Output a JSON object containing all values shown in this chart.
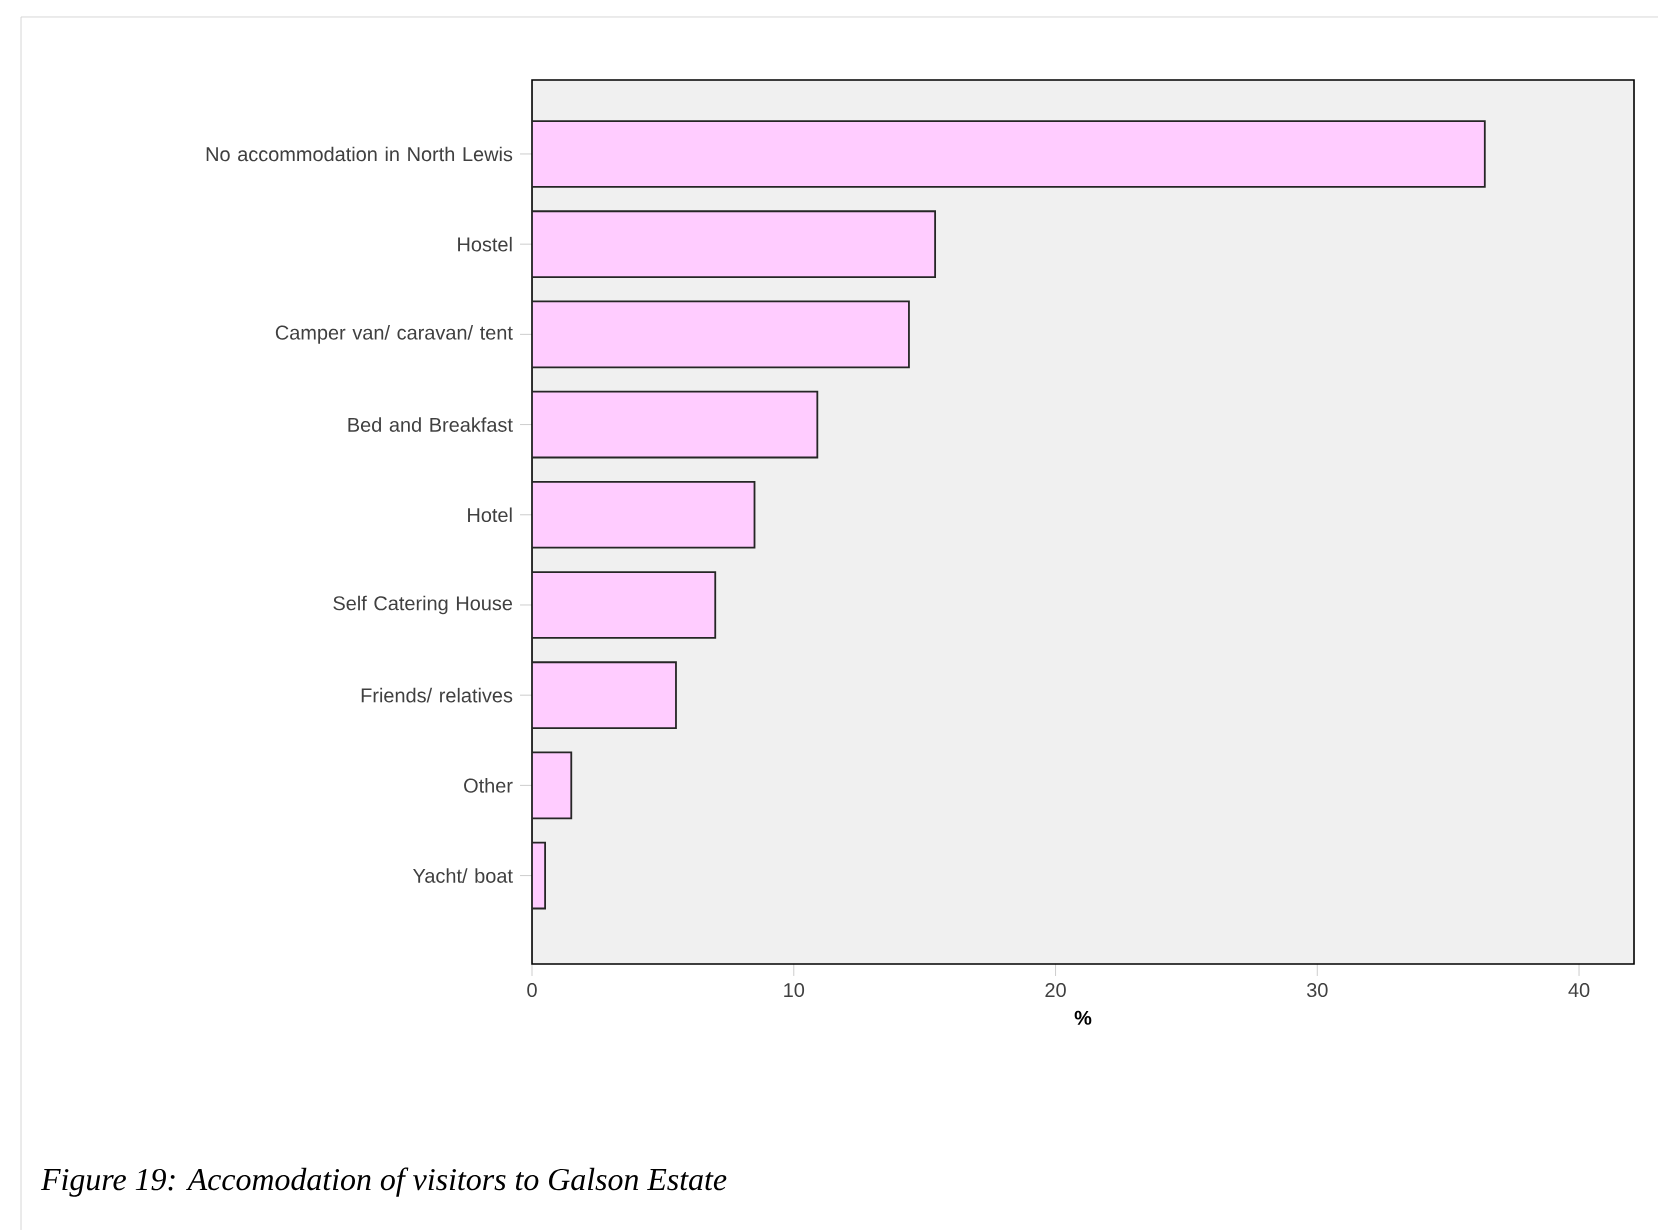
{
  "chart_data": {
    "type": "bar",
    "orientation": "horizontal",
    "xlabel": "%",
    "categories": [
      "No accommodation in North Lewis",
      "Hostel",
      "Camper van/ caravan/ tent",
      "Bed and Breakfast",
      "Hotel",
      "Self Catering House",
      "Friends/ relatives",
      "Other",
      "Yacht/ boat"
    ],
    "values": [
      36.4,
      15.4,
      14.4,
      10.9,
      8.5,
      7.0,
      5.5,
      1.5,
      0.5
    ],
    "color": "#ffccff",
    "xlim": [
      0,
      42.1
    ],
    "xticks": [
      0,
      10,
      20,
      30,
      40
    ],
    "annotations": [
      "Figure 19: Accomodation of visitors to Galson Estate"
    ]
  }
}
